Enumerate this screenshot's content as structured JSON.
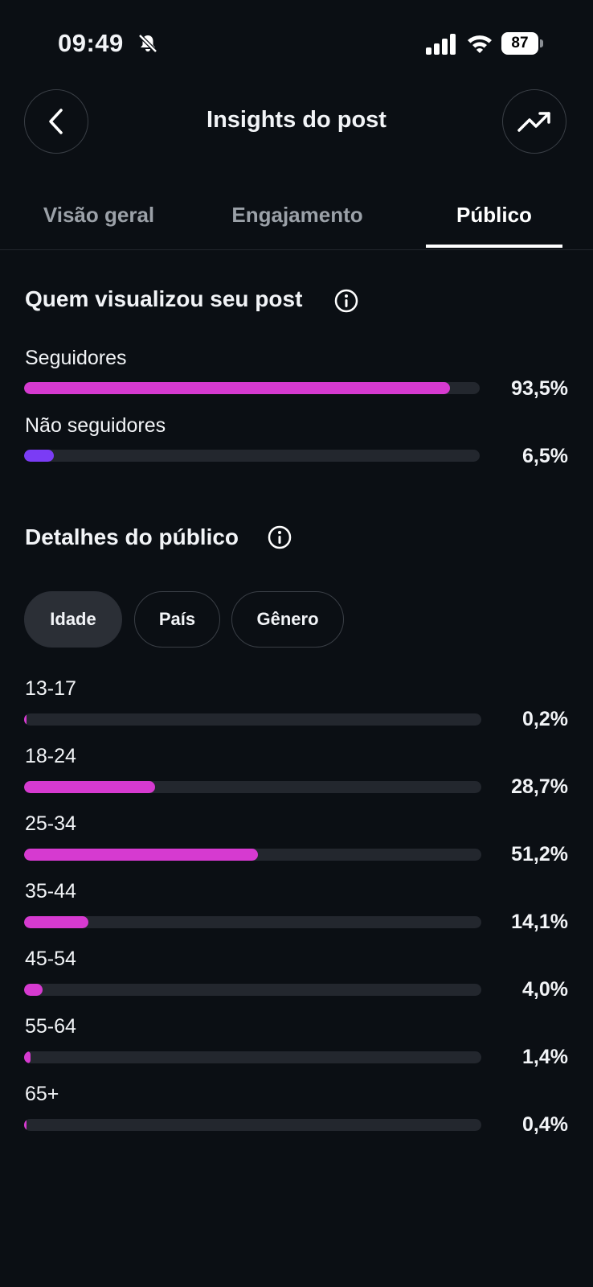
{
  "status_bar": {
    "time": "09:49",
    "battery": "87"
  },
  "header": {
    "title": "Insights do post"
  },
  "tabs": [
    {
      "label": "Visão geral"
    },
    {
      "label": "Engajamento"
    },
    {
      "label": "Público",
      "active": true
    }
  ],
  "viewers": {
    "title": "Quem visualizou seu post",
    "rows": [
      {
        "label": "Seguidores",
        "pct_text": "93,5%",
        "value": 93.5,
        "color": "#d63ad0"
      },
      {
        "label": "Não seguidores",
        "pct_text": "6,5%",
        "value": 6.5,
        "color": "#7b3cf5"
      }
    ]
  },
  "audience": {
    "title": "Detalhes do público",
    "chips": [
      {
        "label": "Idade",
        "active": true
      },
      {
        "label": "País"
      },
      {
        "label": "Gênero"
      }
    ],
    "age_rows": [
      {
        "label": "13-17",
        "pct_text": "0,2%",
        "value": 0.2
      },
      {
        "label": "18-24",
        "pct_text": "28,7%",
        "value": 28.7
      },
      {
        "label": "25-34",
        "pct_text": "51,2%",
        "value": 51.2
      },
      {
        "label": "35-44",
        "pct_text": "14,1%",
        "value": 14.1
      },
      {
        "label": "45-54",
        "pct_text": "4,0%",
        "value": 4.0
      },
      {
        "label": "55-64",
        "pct_text": "1,4%",
        "value": 1.4
      },
      {
        "label": "65+",
        "pct_text": "0,4%",
        "value": 0.4
      }
    ],
    "bar_color": "#d63ad0"
  }
}
